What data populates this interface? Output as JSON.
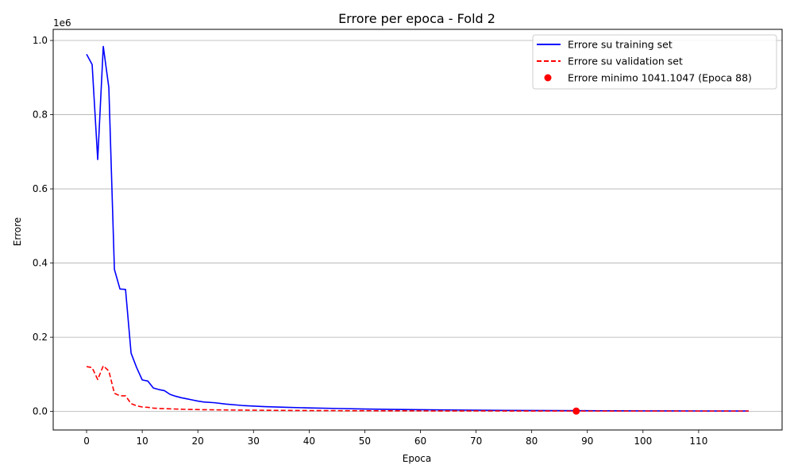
{
  "chart_data": {
    "type": "line",
    "title": "Errore per epoca - Fold 2",
    "xlabel": "Epoca",
    "ylabel": "Errore",
    "y_offset_label": "1e6",
    "xlim": [
      -6,
      125
    ],
    "ylim": [
      -50000,
      1030000
    ],
    "x_ticks": [
      0,
      10,
      20,
      30,
      40,
      50,
      60,
      70,
      80,
      90,
      100,
      110
    ],
    "x_tick_labels": [
      "0",
      "10",
      "20",
      "30",
      "40",
      "50",
      "60",
      "70",
      "80",
      "90",
      "100",
      "110"
    ],
    "y_ticks": [
      0,
      200000,
      400000,
      600000,
      800000,
      1000000
    ],
    "y_tick_labels": [
      "0.0",
      "0.2",
      "0.4",
      "0.6",
      "0.8",
      "1.0"
    ],
    "grid": "horizontal",
    "legend_position": "top-right",
    "series": [
      {
        "name": "Errore su training set",
        "style": "solid",
        "color": "#0000ff",
        "points": [
          [
            0,
            963000
          ],
          [
            1,
            935000
          ],
          [
            2,
            679000
          ],
          [
            3,
            984000
          ],
          [
            4,
            873000
          ],
          [
            5,
            383000
          ],
          [
            6,
            330000
          ],
          [
            7,
            329000
          ],
          [
            8,
            157000
          ],
          [
            9,
            118000
          ],
          [
            10,
            85000
          ],
          [
            11,
            82000
          ],
          [
            12,
            63000
          ],
          [
            13,
            59000
          ],
          [
            14,
            56000
          ],
          [
            15,
            46000
          ],
          [
            16,
            41000
          ],
          [
            17,
            37000
          ],
          [
            18,
            34000
          ],
          [
            19,
            31000
          ],
          [
            20,
            28000
          ],
          [
            21,
            25500
          ],
          [
            23,
            23500
          ],
          [
            25,
            20000
          ],
          [
            28,
            16000
          ],
          [
            32,
            13000
          ],
          [
            36,
            11000
          ],
          [
            40,
            9500
          ],
          [
            45,
            8000
          ],
          [
            50,
            6500
          ],
          [
            55,
            5500
          ],
          [
            60,
            4700
          ],
          [
            65,
            4000
          ],
          [
            70,
            3400
          ],
          [
            75,
            2900
          ],
          [
            80,
            2500
          ],
          [
            85,
            2200
          ],
          [
            90,
            2000
          ],
          [
            95,
            1800
          ],
          [
            100,
            1600
          ],
          [
            105,
            1450
          ],
          [
            110,
            1300
          ],
          [
            115,
            1200
          ],
          [
            119,
            1100
          ]
        ]
      },
      {
        "name": "Errore su validation set",
        "style": "dashed",
        "color": "#ff0000",
        "points": [
          [
            0,
            121000
          ],
          [
            1,
            118000
          ],
          [
            2,
            86000
          ],
          [
            3,
            123000
          ],
          [
            4,
            109000
          ],
          [
            5,
            49000
          ],
          [
            6,
            42000
          ],
          [
            7,
            42000
          ],
          [
            8,
            21000
          ],
          [
            9,
            15000
          ],
          [
            10,
            12000
          ],
          [
            11,
            11000
          ],
          [
            12,
            9000
          ],
          [
            13,
            8000
          ],
          [
            15,
            7000
          ],
          [
            18,
            5500
          ],
          [
            21,
            4700
          ],
          [
            25,
            4000
          ],
          [
            30,
            3300
          ],
          [
            35,
            2800
          ],
          [
            40,
            2400
          ],
          [
            50,
            1900
          ],
          [
            60,
            1600
          ],
          [
            70,
            1400
          ],
          [
            80,
            1200
          ],
          [
            88,
            1041.1047
          ],
          [
            95,
            1050
          ],
          [
            105,
            1060
          ],
          [
            119,
            1070
          ]
        ]
      }
    ],
    "marker": {
      "name": "Errore minimo 1041.1047 (Epoca 88)",
      "x": 88,
      "y": 1041.1047,
      "color": "#ff0000"
    }
  }
}
